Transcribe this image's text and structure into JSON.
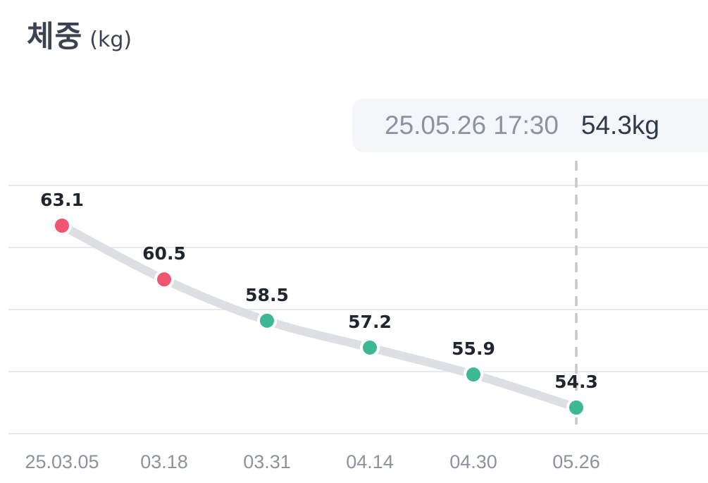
{
  "title": {
    "main": "체중",
    "unit": "(kg)"
  },
  "tooltip": {
    "date": "25.05.26 17:30",
    "value": "54.3kg"
  },
  "colors": {
    "high": "#f0566f",
    "normal": "#3db894",
    "line": "#dcdfe4",
    "grid": "#e6e8eb",
    "crosshair": "#c4c8ce"
  },
  "chart_data": {
    "type": "line",
    "title": "체중 (kg)",
    "xlabel": "",
    "ylabel": "",
    "categories": [
      "25.03.05",
      "03.18",
      "03.31",
      "04.14",
      "04.30",
      "05.26"
    ],
    "series": [
      {
        "values": [
          63.1,
          60.5,
          58.5,
          57.2,
          55.9,
          54.3
        ],
        "labels": [
          "63.1",
          "60.5",
          "58.5",
          "57.2",
          "55.9",
          "54.3"
        ],
        "point_status": [
          "high",
          "high",
          "normal",
          "normal",
          "normal",
          "normal"
        ]
      }
    ],
    "grid": true,
    "highlighted_index": 5
  }
}
